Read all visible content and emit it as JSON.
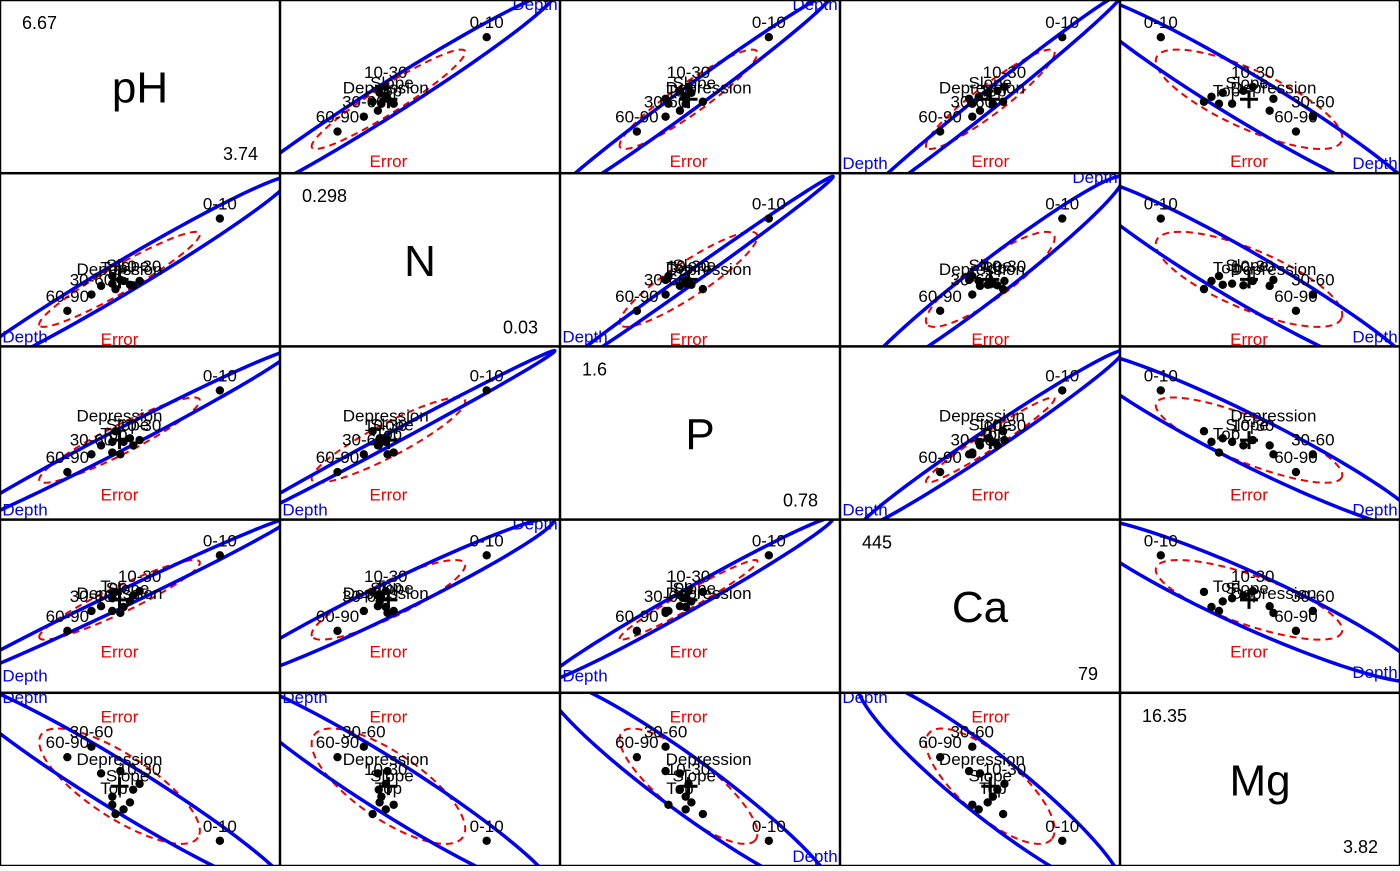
{
  "chart_data": {
    "type": "scatter",
    "title": "",
    "variables": [
      "pH",
      "N",
      "P",
      "Ca",
      "Mg"
    ],
    "ranges": {
      "pH": [
        "3.74",
        "6.67"
      ],
      "N": [
        "0.03",
        "0.298"
      ],
      "P": [
        "0.78",
        "1.6"
      ],
      "Ca": [
        "79",
        "445"
      ],
      "Mg": [
        "3.82",
        "16.35"
      ]
    },
    "hypothesis_label": "Depth",
    "error_label": "Error",
    "depth_means": [
      {
        "label": "0-10",
        "pH": 6.2,
        "N": 0.24,
        "P": 1.43,
        "Ca": 390,
        "Mg": 4.8
      },
      {
        "label": "10-30",
        "pH": 5.2,
        "N": 0.125,
        "P": 1.15,
        "Ca": 300,
        "Mg": 9.7
      },
      {
        "label": "30-60",
        "pH": 4.6,
        "N": 0.1,
        "P": 1.07,
        "Ca": 250,
        "Mg": 12.9
      },
      {
        "label": "60-90",
        "pH": 4.3,
        "N": 0.07,
        "P": 0.97,
        "Ca": 200,
        "Mg": 12.0
      }
    ],
    "contour_means": [
      {
        "label": "Depression",
        "pH": 4.95,
        "N": 0.125,
        "P": 1.22,
        "Ca": 265,
        "Mg": 10.8
      },
      {
        "label": "Slope",
        "pH": 5.05,
        "N": 0.132,
        "P": 1.17,
        "Ca": 278,
        "Mg": 9.4
      },
      {
        "label": "Top",
        "pH": 4.88,
        "N": 0.128,
        "P": 1.12,
        "Ca": 282,
        "Mg": 8.3
      }
    ],
    "cell_means": {
      "pH": [
        6.2,
        5.2,
        4.6,
        4.3,
        5.08,
        5.0,
        5.12,
        4.86,
        4.96,
        4.72,
        4.9,
        4.86
      ],
      "N": [
        0.24,
        0.125,
        0.1,
        0.07,
        0.118,
        0.125,
        0.117,
        0.12,
        0.127,
        0.116,
        0.11,
        0.134
      ],
      "P": [
        1.43,
        1.15,
        1.07,
        0.97,
        1.16,
        1.14,
        1.12,
        1.14,
        1.07,
        1.12,
        1.2,
        1.08
      ],
      "Ca": [
        390,
        300,
        250,
        200,
        274,
        260,
        289,
        282,
        245,
        262,
        298,
        250
      ],
      "Mg": [
        4.8,
        9.7,
        12.9,
        12.0,
        8.1,
        7.5,
        9.2,
        8.6,
        10.8,
        10.6,
        7.1,
        7.9
      ]
    },
    "grand_mean": {
      "pH": 4.95,
      "N": 0.128,
      "P": 1.15,
      "Ca": 278,
      "Mg": 9.5
    },
    "hypothesis_ellipse_color": "#0000ee",
    "error_ellipse_color": "#ee0000",
    "point_color": "#000000"
  }
}
